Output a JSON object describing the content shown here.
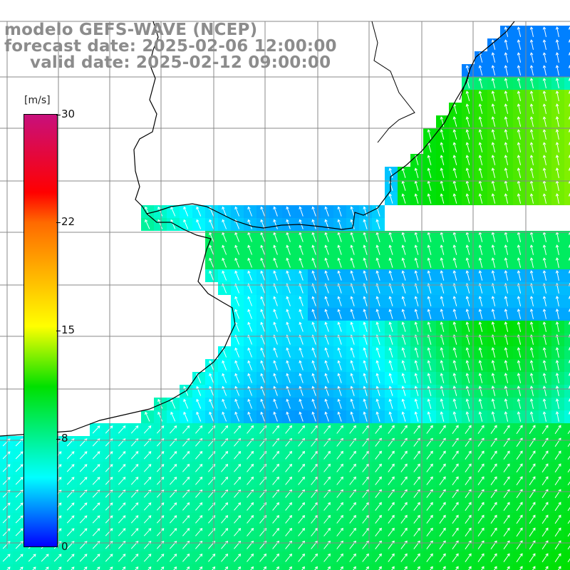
{
  "title": {
    "model": "modelo GEFS-WAVE (NCEP)",
    "forecast": "forecast date: 2025-02-06 12:00:00",
    "valid": "valid date: 2025-02-12 09:00:00"
  },
  "colorbar": {
    "unit": "[m/s]",
    "ticks": [
      "30",
      "22",
      "15",
      "8",
      "0"
    ],
    "tick_values": [
      30,
      22,
      15,
      8,
      0
    ],
    "min": 0,
    "max": 30,
    "colors": [
      "#0000ff",
      "#00ffff",
      "#00e000",
      "#ffff00",
      "#ff6a00",
      "#ff0000",
      "#c8107c"
    ]
  },
  "map": {
    "variable": "wind speed and direction",
    "land_color": "#ffffff",
    "grid_color": "#808080",
    "coastline_color": "#000000",
    "arrow_color": "#ffffff"
  }
}
